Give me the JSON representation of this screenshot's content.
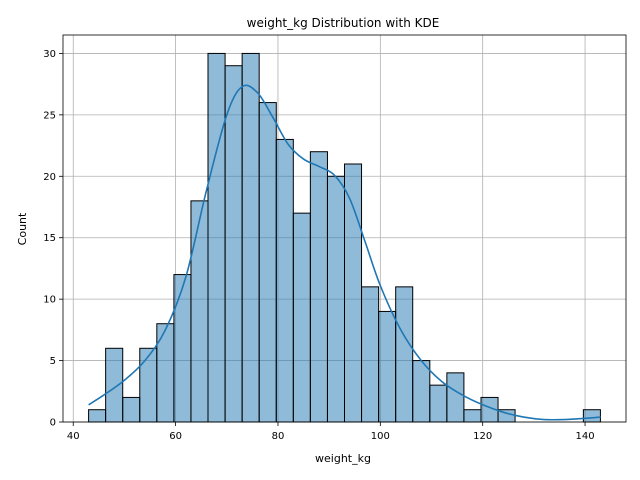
{
  "chart_data": {
    "type": "bar",
    "title": "weight_kg Distribution with KDE",
    "xlabel": "weight_kg",
    "ylabel": "Count",
    "xlim": [
      38.0,
      148.0
    ],
    "ylim": [
      0,
      31.5
    ],
    "xticks": [
      40,
      60,
      80,
      100,
      120,
      140
    ],
    "yticks": [
      0,
      5,
      10,
      15,
      20,
      25,
      30
    ],
    "grid": true,
    "bar_color": "#1f77b4",
    "bar_alpha": 0.5,
    "bar_edge_color": "#000000",
    "kde_color": "#1f77b4",
    "bins": [
      {
        "x0": 43.0,
        "x1": 46.33,
        "count": 1
      },
      {
        "x0": 46.33,
        "x1": 49.67,
        "count": 6
      },
      {
        "x0": 49.67,
        "x1": 53.0,
        "count": 2
      },
      {
        "x0": 53.0,
        "x1": 56.33,
        "count": 6
      },
      {
        "x0": 56.33,
        "x1": 59.67,
        "count": 8
      },
      {
        "x0": 59.67,
        "x1": 63.0,
        "count": 12
      },
      {
        "x0": 63.0,
        "x1": 66.33,
        "count": 18
      },
      {
        "x0": 66.33,
        "x1": 69.67,
        "count": 30
      },
      {
        "x0": 69.67,
        "x1": 73.0,
        "count": 29
      },
      {
        "x0": 73.0,
        "x1": 76.33,
        "count": 30
      },
      {
        "x0": 76.33,
        "x1": 79.67,
        "count": 26
      },
      {
        "x0": 79.67,
        "x1": 83.0,
        "count": 23
      },
      {
        "x0": 83.0,
        "x1": 86.33,
        "count": 17
      },
      {
        "x0": 86.33,
        "x1": 89.67,
        "count": 22
      },
      {
        "x0": 89.67,
        "x1": 93.0,
        "count": 20
      },
      {
        "x0": 93.0,
        "x1": 96.33,
        "count": 21
      },
      {
        "x0": 96.33,
        "x1": 99.67,
        "count": 11
      },
      {
        "x0": 99.67,
        "x1": 103.0,
        "count": 9
      },
      {
        "x0": 103.0,
        "x1": 106.33,
        "count": 11
      },
      {
        "x0": 106.33,
        "x1": 109.67,
        "count": 5
      },
      {
        "x0": 109.67,
        "x1": 113.0,
        "count": 3
      },
      {
        "x0": 113.0,
        "x1": 116.33,
        "count": 4
      },
      {
        "x0": 116.33,
        "x1": 119.67,
        "count": 1
      },
      {
        "x0": 119.67,
        "x1": 123.0,
        "count": 2
      },
      {
        "x0": 123.0,
        "x1": 126.33,
        "count": 1
      },
      {
        "x0": 126.33,
        "x1": 129.67,
        "count": 0
      },
      {
        "x0": 129.67,
        "x1": 133.0,
        "count": 0
      },
      {
        "x0": 133.0,
        "x1": 136.33,
        "count": 0
      },
      {
        "x0": 136.33,
        "x1": 139.67,
        "count": 0
      },
      {
        "x0": 139.67,
        "x1": 143.0,
        "count": 1
      }
    ],
    "kde": {
      "x": [
        43,
        46,
        50,
        54,
        58,
        62,
        66,
        70,
        73,
        76,
        79,
        82,
        85,
        88,
        91,
        94,
        97,
        100,
        104,
        108,
        112,
        116,
        120,
        124,
        128,
        132,
        136,
        140,
        143
      ],
      "y": [
        1.4,
        2.2,
        3.4,
        5.0,
        7.5,
        11.8,
        18.8,
        25.0,
        27.3,
        26.8,
        24.8,
        22.6,
        21.4,
        20.8,
        20.1,
        18.2,
        14.7,
        11.1,
        7.5,
        5.0,
        3.3,
        2.2,
        1.4,
        0.8,
        0.4,
        0.2,
        0.2,
        0.3,
        0.4
      ]
    }
  }
}
